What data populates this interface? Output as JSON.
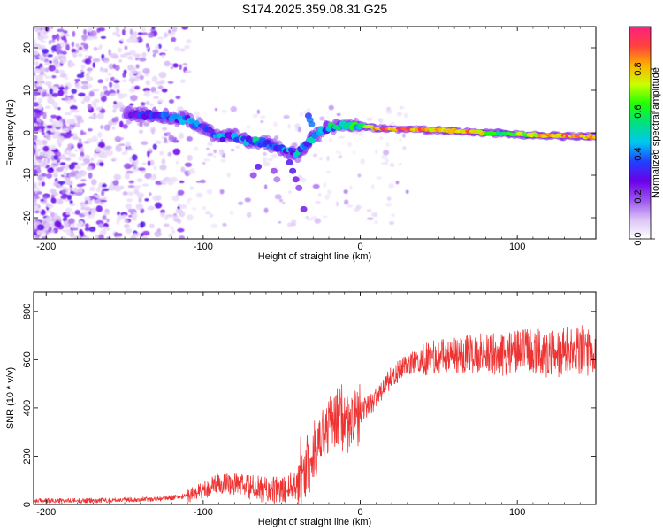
{
  "title": "S174.2025.359.08.31.G25",
  "chart_data": [
    {
      "type": "heatmap",
      "name": "spectrogram",
      "xlabel": "Height of straight line (km)",
      "ylabel": "Frequency (Hz)",
      "xlim": [
        -208,
        150
      ],
      "ylim": [
        -25,
        25
      ],
      "xticks": [
        -200,
        -100,
        0,
        100
      ],
      "yticks": [
        -20,
        -10,
        0,
        10,
        20
      ],
      "colorbar": {
        "label": "Normalized spectral amplitude",
        "range": [
          0,
          1
        ],
        "ticks": [
          "0.0",
          "0.2",
          "0.4",
          "0.6",
          "0.8"
        ],
        "tick_values": [
          0,
          0.2,
          0.4,
          0.6,
          0.8
        ],
        "colors": [
          "#ffffff",
          "#dcc4f5",
          "#9b55f0",
          "#6a00e8",
          "#2040ff",
          "#00c8f0",
          "#00e080",
          "#20ff00",
          "#c8ff00",
          "#ffb000",
          "#ff4040",
          "#ff2080"
        ]
      },
      "ridge": [
        {
          "x": -150,
          "f": 4.5,
          "a": 0.3
        },
        {
          "x": -130,
          "f": 4.2,
          "a": 0.35
        },
        {
          "x": -110,
          "f": 3.0,
          "a": 0.4
        },
        {
          "x": -100,
          "f": 1.0,
          "a": 0.35
        },
        {
          "x": -90,
          "f": -1.0,
          "a": 0.4
        },
        {
          "x": -80,
          "f": -1.0,
          "a": 0.4
        },
        {
          "x": -70,
          "f": -2.0,
          "a": 0.45
        },
        {
          "x": -60,
          "f": -2.5,
          "a": 0.45
        },
        {
          "x": -50,
          "f": -4.0,
          "a": 0.4
        },
        {
          "x": -40,
          "f": -5.0,
          "a": 0.45
        },
        {
          "x": -30,
          "f": -1.0,
          "a": 0.45
        },
        {
          "x": -20,
          "f": 1.5,
          "a": 0.5
        },
        {
          "x": -10,
          "f": 1.5,
          "a": 0.55
        },
        {
          "x": 0,
          "f": 1.8,
          "a": 0.6
        },
        {
          "x": 10,
          "f": 1.0,
          "a": 0.85
        },
        {
          "x": 30,
          "f": 0.8,
          "a": 0.9
        },
        {
          "x": 50,
          "f": 0.6,
          "a": 0.8
        },
        {
          "x": 70,
          "f": 0.2,
          "a": 0.85
        },
        {
          "x": 90,
          "f": -0.2,
          "a": 0.6
        },
        {
          "x": 110,
          "f": -0.6,
          "a": 0.75
        },
        {
          "x": 130,
          "f": -0.8,
          "a": 0.85
        },
        {
          "x": 150,
          "f": -1.0,
          "a": 0.8
        }
      ]
    },
    {
      "type": "line",
      "name": "snr",
      "xlabel": "Height of straight line (km)",
      "ylabel": "SNR (10 * v/v)",
      "xlim": [
        -208,
        150
      ],
      "ylim": [
        0,
        880
      ],
      "xticks": [
        -200,
        -100,
        0,
        100
      ],
      "yticks": [
        0,
        200,
        400,
        600,
        800
      ],
      "color": "#ee3333",
      "series": [
        {
          "name": "SNR",
          "x": [
            -208,
            -180,
            -150,
            -130,
            -110,
            -100,
            -90,
            -80,
            -70,
            -60,
            -50,
            -40,
            -35,
            -30,
            -25,
            -20,
            -15,
            -10,
            -5,
            0,
            10,
            20,
            30,
            40,
            50,
            60,
            70,
            80,
            90,
            100,
            110,
            120,
            130,
            140,
            150
          ],
          "y": [
            15,
            15,
            20,
            22,
            35,
            60,
            90,
            85,
            70,
            60,
            55,
            90,
            150,
            200,
            250,
            320,
            330,
            350,
            370,
            380,
            440,
            530,
            580,
            600,
            610,
            620,
            625,
            630,
            620,
            630,
            640,
            620,
            630,
            640,
            620
          ]
        }
      ]
    }
  ]
}
